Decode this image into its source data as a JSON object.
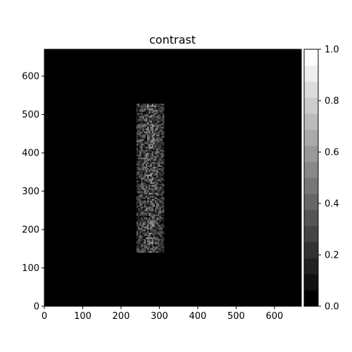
{
  "chart_data": {
    "type": "heatmap",
    "title": "contrast",
    "xlabel": "",
    "ylabel": "",
    "xlim": [
      0,
      670
    ],
    "ylim": [
      0,
      670
    ],
    "x_ticks": [
      0,
      100,
      200,
      300,
      400,
      500,
      600
    ],
    "y_ticks": [
      0,
      100,
      200,
      300,
      400,
      500,
      600
    ],
    "x_tick_labels": [
      "0",
      "100",
      "200",
      "300",
      "400",
      "500",
      "600"
    ],
    "y_tick_labels": [
      "0",
      "100",
      "200",
      "300",
      "400",
      "500",
      "600"
    ],
    "background_value": 0.0,
    "bright_region": {
      "x_range": [
        240,
        310
      ],
      "y_range": [
        140,
        525
      ],
      "value_range": [
        0.1,
        0.65
      ]
    },
    "colormap": "gray",
    "colorbar": {
      "range": [
        0.0,
        1.0
      ],
      "levels": 16,
      "ticks": [
        0.0,
        0.2,
        0.4,
        0.6,
        0.8,
        1.0
      ],
      "tick_labels": [
        "0.0",
        "0.2",
        "0.4",
        "0.6",
        "0.8",
        "1.0"
      ]
    },
    "grid": false
  }
}
